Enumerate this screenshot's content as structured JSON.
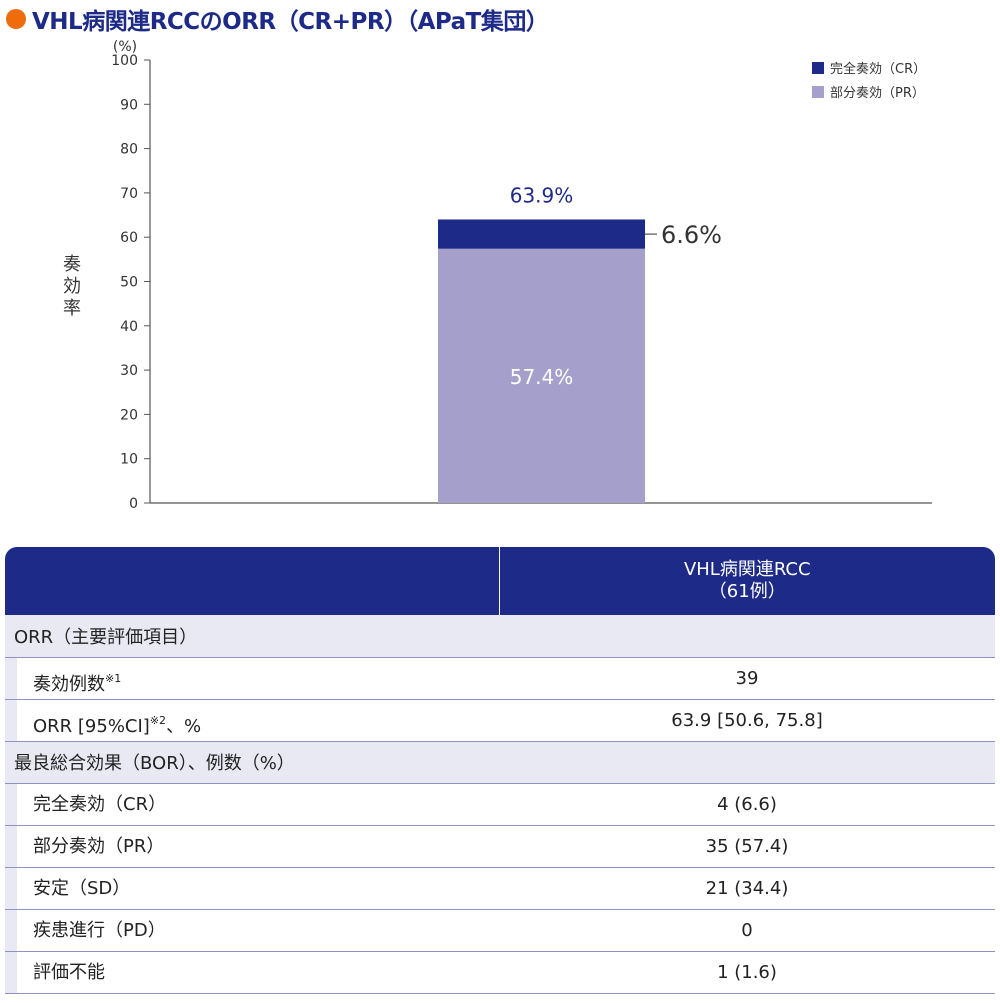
{
  "title": "VHL病関連RCCのORR（CR+PR）（APaT集団）",
  "chart_data": {
    "type": "bar",
    "stacked": true,
    "y_unit_label": "(%)",
    "ylabel": "奏効率",
    "ylim": [
      0,
      100
    ],
    "yticks": [
      "0",
      "10",
      "20",
      "30",
      "40",
      "50",
      "60",
      "70",
      "80",
      "90",
      "100"
    ],
    "categories": [
      ""
    ],
    "series": [
      {
        "name": "部分奏効（PR）",
        "values": [
          57.4
        ],
        "color": "#a59fcb",
        "label": "57.4%"
      },
      {
        "name": "完全奏効（CR）",
        "values": [
          6.6
        ],
        "color": "#1d2a87",
        "label": "6.6%"
      }
    ],
    "total_label": "63.9%",
    "legend_placement": "top-right",
    "grid": false
  },
  "legend": [
    {
      "label": "完全奏効（CR）",
      "color": "#1d2a87"
    },
    {
      "label": "部分奏効（PR）",
      "color": "#a59fcb"
    }
  ],
  "table": {
    "header_line1": "VHL病関連RCC",
    "header_line2": "（61例）",
    "section_orr": "ORR（主要評価項目）",
    "orr_rows": [
      {
        "label": "奏効例数",
        "sup": "※1",
        "suffix": "",
        "value": "39"
      },
      {
        "label": "ORR [95%CI]",
        "sup": "※2",
        "suffix": "、%",
        "value": "63.9 [50.6, 75.8]"
      }
    ],
    "section_bor": "最良総合効果（BOR）、例数（%）",
    "bor_rows": [
      {
        "label": "完全奏効（CR）",
        "value": "4 (6.6)"
      },
      {
        "label": "部分奏効（PR）",
        "value": "35 (57.4)"
      },
      {
        "label": "安定（SD）",
        "value": "21 (34.4)"
      },
      {
        "label": "疾患進行（PD）",
        "value": "0"
      },
      {
        "label": "評価不能",
        "value": "1 (1.6)"
      }
    ]
  },
  "colors": {
    "accent_orange": "#ee6c0b",
    "navy": "#1d2a87",
    "lavender": "#a59fcb",
    "section_bg": "#e8e9f3"
  }
}
